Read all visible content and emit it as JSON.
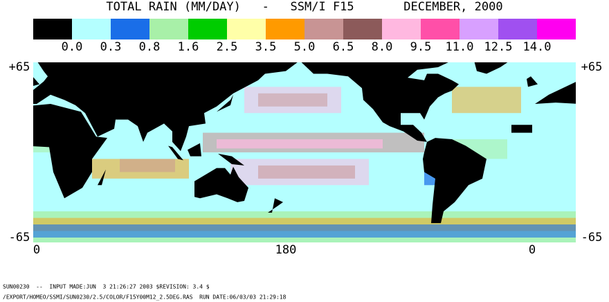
{
  "header": {
    "title": "TOTAL RAIN (MM/DAY)   -   SSM/I F15       DECEMBER, 2000"
  },
  "legend": {
    "colors": [
      "#000000",
      "#b4ffff",
      "#1a6ee8",
      "#a8f0a8",
      "#00cc00",
      "#ffffa8",
      "#ff9a00",
      "#c89494",
      "#8c5a5a",
      "#ffb8e0",
      "#ff4fa8",
      "#d8a0ff",
      "#a050f0",
      "#ff00f0"
    ],
    "labels": [
      "0.0",
      "0.3",
      "0.8",
      "1.6",
      "2.5",
      "3.5",
      "5.0",
      "6.5",
      "8.0",
      "9.5",
      "11.0",
      "12.5",
      "14.0"
    ]
  },
  "map": {
    "lat_labels": {
      "left_top": "+65",
      "left_bottom": "-65",
      "right_top": "+65",
      "right_bottom": "-65"
    },
    "lon_labels": [
      "0",
      "180",
      "0"
    ]
  },
  "footer": {
    "lines": [
      "SUN00230  --  INPUT MADE:JUN  3 21:26:27 2003 $REVISION: 3.4 $",
      "/EXPORT/HOMEO/SSMI/SUN0230/2.5/COLOR/F15Y00M12_2.5DEG.RAS  RUN DATE:06/03/03 21:29:18"
    ]
  }
}
